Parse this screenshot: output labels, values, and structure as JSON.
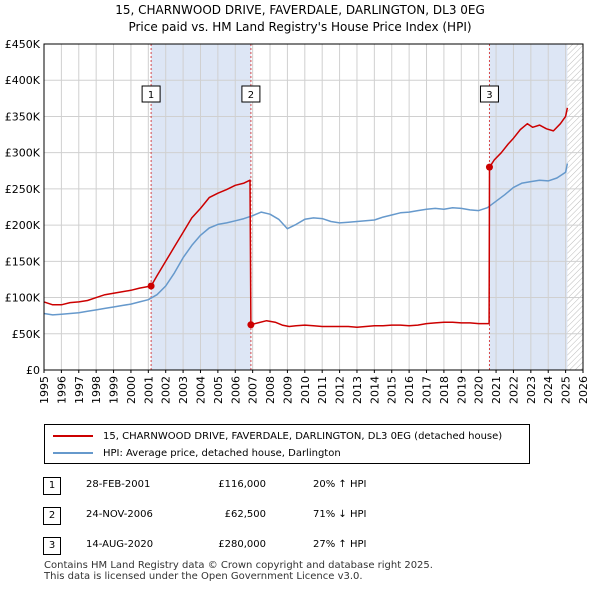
{
  "title": "15, CHARNWOOD DRIVE, FAVERDALE, DARLINGTON, DL3 0EG",
  "subtitle": "Price paid vs. HM Land Registry's House Price Index (HPI)",
  "chart_data": {
    "type": "line",
    "title": "15, CHARNWOOD DRIVE, FAVERDALE, DARLINGTON, DL3 0EG",
    "subtitle": "Price paid vs. HM Land Registry's House Price Index (HPI)",
    "xlim": [
      1995,
      2026
    ],
    "ylim": [
      0,
      450000
    ],
    "x_ticks": [
      "1995",
      "1996",
      "1997",
      "1998",
      "1999",
      "2000",
      "2001",
      "2002",
      "2003",
      "2004",
      "2005",
      "2006",
      "2007",
      "2008",
      "2009",
      "2010",
      "2011",
      "2012",
      "2013",
      "2014",
      "2015",
      "2016",
      "2017",
      "2018",
      "2019",
      "2020",
      "2021",
      "2022",
      "2023",
      "2024",
      "2025",
      "2026"
    ],
    "y_ticks": [
      {
        "value": 0,
        "label": "£0"
      },
      {
        "value": 50000,
        "label": "£50K"
      },
      {
        "value": 100000,
        "label": "£100K"
      },
      {
        "value": 150000,
        "label": "£150K"
      },
      {
        "value": 200000,
        "label": "£200K"
      },
      {
        "value": 250000,
        "label": "£250K"
      },
      {
        "value": 300000,
        "label": "£300K"
      },
      {
        "value": 350000,
        "label": "£350K"
      },
      {
        "value": 400000,
        "label": "£400K"
      },
      {
        "value": 450000,
        "label": "£450K"
      }
    ],
    "grid": true,
    "shaded_periods": [
      {
        "from": 2001.16,
        "to": 2006.9
      },
      {
        "from": 2020.62,
        "to": 2025.1
      }
    ],
    "hatched_period": {
      "from": 2025.1,
      "to": 2026
    },
    "series": [
      {
        "name": "15, CHARNWOOD DRIVE, FAVERDALE, DARLINGTON, DL3 0EG (detached house)",
        "color": "#cc0000",
        "x": [
          1995.0,
          1995.5,
          1996.0,
          1996.5,
          1997.0,
          1997.5,
          1998.0,
          1998.5,
          1999.0,
          1999.5,
          2000.0,
          2000.5,
          2001.16,
          2001.5,
          2002.0,
          2002.5,
          2003.0,
          2003.5,
          2004.0,
          2004.5,
          2005.0,
          2005.5,
          2006.0,
          2006.5,
          2006.85,
          2006.9,
          2007.3,
          2007.8,
          2008.3,
          2008.7,
          2009.1,
          2009.5,
          2010.0,
          2010.5,
          2011.0,
          2011.5,
          2012.0,
          2012.5,
          2013.0,
          2013.5,
          2014.0,
          2014.5,
          2015.0,
          2015.5,
          2016.0,
          2016.5,
          2017.0,
          2017.5,
          2018.0,
          2018.5,
          2019.0,
          2019.5,
          2020.0,
          2020.6,
          2020.62,
          2020.9,
          2021.3,
          2021.7,
          2022.0,
          2022.4,
          2022.8,
          2023.1,
          2023.5,
          2023.9,
          2024.3,
          2024.7,
          2025.0,
          2025.1
        ],
        "values": [
          94000,
          90000,
          90000,
          93000,
          94000,
          96000,
          100000,
          104000,
          106000,
          108000,
          110000,
          113000,
          116000,
          130000,
          150000,
          170000,
          190000,
          210000,
          223000,
          238000,
          244000,
          249000,
          255000,
          258000,
          262000,
          62500,
          65000,
          68000,
          66000,
          62000,
          60000,
          61000,
          62000,
          61000,
          60000,
          60000,
          60000,
          60000,
          59000,
          60000,
          61000,
          61000,
          62000,
          62000,
          61000,
          62000,
          64000,
          65000,
          66000,
          66000,
          65000,
          65000,
          64000,
          64000,
          280000,
          290000,
          300000,
          312000,
          320000,
          332000,
          340000,
          335000,
          338000,
          333000,
          330000,
          340000,
          350000,
          362000
        ]
      },
      {
        "name": "HPI: Average price, detached house, Darlington",
        "color": "#6699cc",
        "x": [
          1995.0,
          1995.5,
          1996.0,
          1996.5,
          1997.0,
          1997.5,
          1998.0,
          1998.5,
          1999.0,
          1999.5,
          2000.0,
          2000.5,
          2001.0,
          2001.5,
          2002.0,
          2002.5,
          2003.0,
          2003.5,
          2004.0,
          2004.5,
          2005.0,
          2005.5,
          2006.0,
          2006.5,
          2007.0,
          2007.5,
          2008.0,
          2008.5,
          2009.0,
          2009.5,
          2010.0,
          2010.5,
          2011.0,
          2011.5,
          2012.0,
          2012.5,
          2013.0,
          2013.5,
          2014.0,
          2014.5,
          2015.0,
          2015.5,
          2016.0,
          2016.5,
          2017.0,
          2017.5,
          2018.0,
          2018.5,
          2019.0,
          2019.5,
          2020.0,
          2020.5,
          2021.0,
          2021.5,
          2022.0,
          2022.5,
          2023.0,
          2023.5,
          2024.0,
          2024.5,
          2025.0,
          2025.1
        ],
        "values": [
          78000,
          76000,
          77000,
          78000,
          79000,
          81000,
          83000,
          85000,
          87000,
          89000,
          91000,
          94000,
          97000,
          104000,
          116000,
          134000,
          155000,
          172000,
          186000,
          196000,
          201000,
          203000,
          206000,
          209000,
          213000,
          218000,
          215000,
          208000,
          195000,
          201000,
          208000,
          210000,
          209000,
          205000,
          203000,
          204000,
          205000,
          206000,
          207000,
          211000,
          214000,
          217000,
          218000,
          220000,
          222000,
          223000,
          222000,
          224000,
          223000,
          221000,
          220000,
          224000,
          233000,
          242000,
          252000,
          258000,
          260000,
          262000,
          261000,
          265000,
          273000,
          285000
        ]
      }
    ],
    "sales": [
      {
        "marker": "1",
        "year": 2001.16,
        "price": 116000,
        "date": "28-FEB-2001",
        "price_label": "£116,000",
        "hpi": "20% ↑ HPI"
      },
      {
        "marker": "2",
        "year": 2006.9,
        "price": 62500,
        "date": "24-NOV-2006",
        "price_label": "£62,500",
        "hpi": "71% ↓ HPI"
      },
      {
        "marker": "3",
        "year": 2020.62,
        "price": 280000,
        "date": "14-AUG-2020",
        "price_label": "£280,000",
        "hpi": "27% ↑ HPI"
      }
    ]
  },
  "legend": {
    "red_label": "15, CHARNWOOD DRIVE, FAVERDALE, DARLINGTON, DL3 0EG (detached house)",
    "blue_label": "HPI: Average price, detached house, Darlington",
    "red_color": "#cc0000",
    "blue_color": "#6699cc"
  },
  "sales_table": [
    {
      "marker": "1",
      "date": "28-FEB-2001",
      "price": "£116,000",
      "hpi": "20% ↑ HPI"
    },
    {
      "marker": "2",
      "date": "24-NOV-2006",
      "price": "£62,500",
      "hpi": "71% ↓ HPI"
    },
    {
      "marker": "3",
      "date": "14-AUG-2020",
      "price": "£280,000",
      "hpi": "27% ↑ HPI"
    }
  ],
  "footer": {
    "line1": "Contains HM Land Registry data © Crown copyright and database right 2025.",
    "line2": "This data is licensed under the Open Government Licence v3.0."
  }
}
